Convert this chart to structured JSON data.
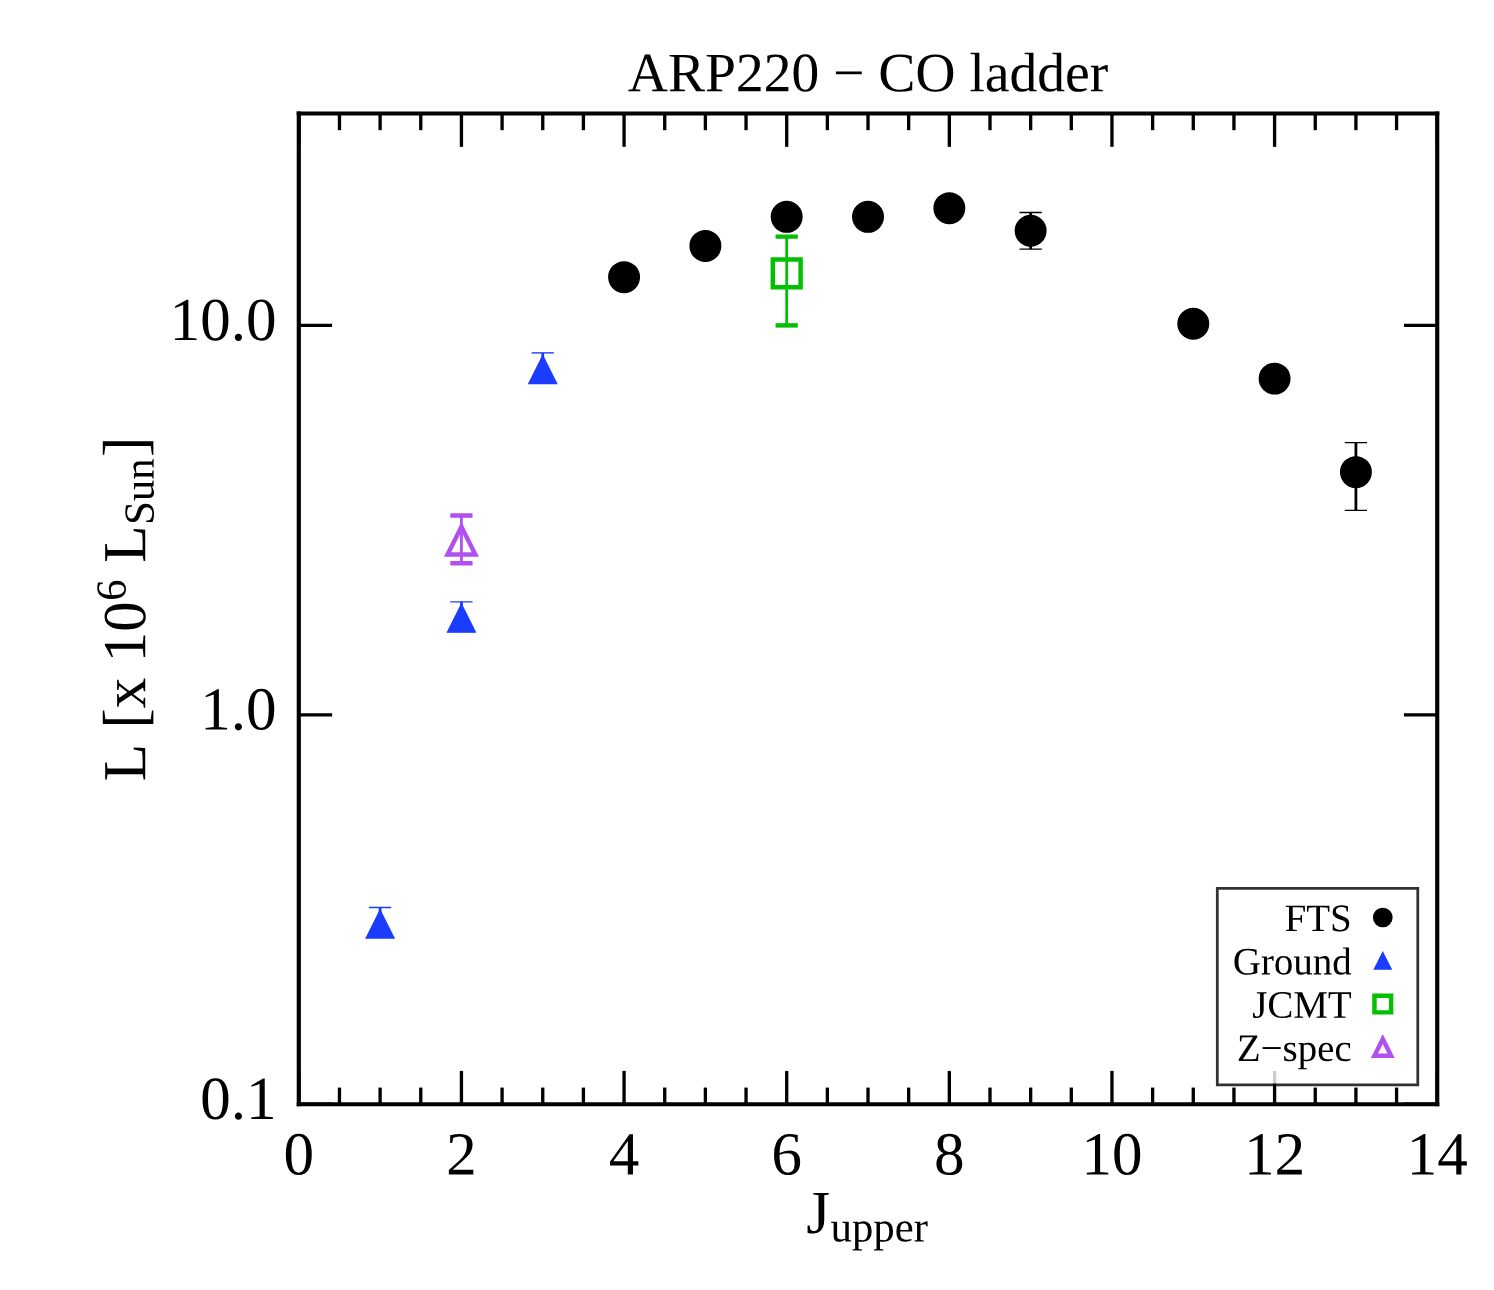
{
  "chart_data": {
    "type": "scatter",
    "title": "ARP220 − CO ladder",
    "xlabel": "J$_{upper}$",
    "ylabel": "L [x 10$^{6}$ L$_{Sun}$]",
    "xlim": [
      0,
      14
    ],
    "xticks": [
      0,
      2,
      4,
      6,
      8,
      10,
      12,
      14
    ],
    "ylim": [
      0.1,
      35
    ],
    "yticks": [
      {
        "value": 0.1,
        "label": "0.1"
      },
      {
        "value": 1,
        "label": "1.0"
      },
      {
        "value": 10,
        "label": "10.0"
      }
    ],
    "log": "y",
    "grid": false,
    "legend": "bottom right",
    "series": [
      {
        "name": "FTS",
        "color": "#000000",
        "marker": "circle",
        "x": [
          4,
          5,
          6,
          7,
          8,
          9,
          11,
          12,
          13
        ],
        "values": [
          13.3,
          16,
          19,
          19,
          20,
          17.5,
          10.1,
          7.3,
          4.2
        ],
        "errors": [
          null,
          null,
          null,
          null,
          null,
          [
            15.7,
            19.5
          ],
          null,
          null,
          [
            3.35,
            5.0
          ]
        ]
      },
      {
        "name": "Ground",
        "color": "#1a3cff",
        "marker": "triangle",
        "x": [
          1,
          2,
          3
        ],
        "values": [
          0.29,
          1.77,
          7.7
        ],
        "errors": [
          [
            0.27,
            0.32
          ],
          [
            1.65,
            1.95
          ],
          [
            7.1,
            8.5
          ]
        ]
      },
      {
        "name": "JCMT",
        "color": "#00c000",
        "marker": "square",
        "x": [
          6
        ],
        "values": [
          13.6
        ],
        "errors": [
          [
            10,
            16.9
          ]
        ]
      },
      {
        "name": "Z−spec",
        "color": "#b050f0",
        "marker": "triangle",
        "x": [
          2
        ],
        "values": [
          2.8
        ],
        "errors": [
          [
            2.45,
            3.25
          ]
        ]
      }
    ]
  }
}
